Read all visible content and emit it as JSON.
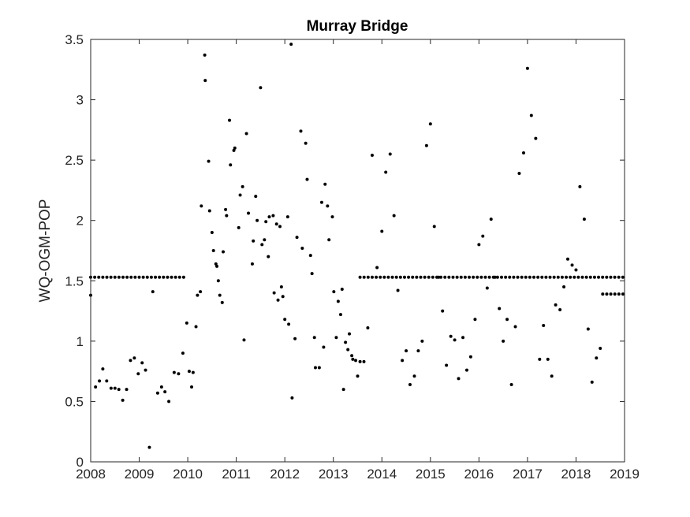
{
  "chart_data": {
    "type": "scatter",
    "title": "Murray Bridge",
    "xlabel": "",
    "ylabel": "WQ-OGM-POP",
    "xlim": [
      2008,
      2019
    ],
    "ylim": [
      0,
      3.5
    ],
    "xticks": [
      2008,
      2009,
      2010,
      2011,
      2012,
      2013,
      2014,
      2015,
      2016,
      2017,
      2018,
      2019
    ],
    "yticks": [
      0,
      0.5,
      1,
      1.5,
      2,
      2.5,
      3,
      3.5
    ],
    "ytick_labels": [
      "0",
      "0.5",
      "1",
      "1.5",
      "2",
      "2.5",
      "3",
      "3.5"
    ],
    "grid": false,
    "marker_color": "#000000",
    "axis_color": "#262626",
    "series": [
      {
        "points": [
          [
            2008.0,
            1.38
          ],
          [
            2008.1,
            0.62
          ],
          [
            2008.18,
            0.67
          ],
          [
            2008.25,
            0.77
          ],
          [
            2008.33,
            0.67
          ],
          [
            2008.42,
            0.61
          ],
          [
            2008.5,
            0.61
          ],
          [
            2008.58,
            0.6
          ],
          [
            2008.66,
            0.51
          ],
          [
            2008.74,
            0.6
          ],
          [
            2008.82,
            0.84
          ],
          [
            2008.9,
            0.86
          ],
          [
            2008.98,
            0.73
          ],
          [
            2009.06,
            0.82
          ],
          [
            2009.13,
            0.76
          ],
          [
            2009.21,
            0.12
          ],
          [
            2009.28,
            1.41
          ],
          [
            2009.38,
            0.57
          ],
          [
            2009.46,
            0.62
          ],
          [
            2009.53,
            0.58
          ],
          [
            2009.61,
            0.5
          ],
          [
            2009.72,
            0.74
          ],
          [
            2009.81,
            0.73
          ],
          [
            2009.9,
            0.9
          ],
          [
            2009.98,
            1.15
          ],
          [
            2010.03,
            0.75
          ],
          [
            2010.08,
            0.62
          ],
          [
            2010.11,
            0.74
          ],
          [
            2010.17,
            1.12
          ],
          [
            2010.2,
            1.38
          ],
          [
            2010.26,
            1.41
          ],
          [
            2010.28,
            2.12
          ],
          [
            2010.35,
            3.37
          ],
          [
            2010.36,
            3.16
          ],
          [
            2010.43,
            2.49
          ],
          [
            2010.45,
            2.08
          ],
          [
            2010.5,
            1.9
          ],
          [
            2010.53,
            1.75
          ],
          [
            2010.58,
            1.64
          ],
          [
            2010.6,
            1.62
          ],
          [
            2010.63,
            1.5
          ],
          [
            2010.66,
            1.38
          ],
          [
            2010.71,
            1.32
          ],
          [
            2010.73,
            1.74
          ],
          [
            2010.78,
            2.09
          ],
          [
            2010.8,
            2.04
          ],
          [
            2010.86,
            2.83
          ],
          [
            2010.88,
            2.46
          ],
          [
            2010.95,
            2.58
          ],
          [
            2010.97,
            2.6
          ],
          [
            2011.05,
            1.94
          ],
          [
            2011.08,
            2.21
          ],
          [
            2011.13,
            2.28
          ],
          [
            2011.16,
            1.01
          ],
          [
            2011.21,
            2.72
          ],
          [
            2011.25,
            2.06
          ],
          [
            2011.33,
            1.64
          ],
          [
            2011.35,
            1.83
          ],
          [
            2011.4,
            2.2
          ],
          [
            2011.43,
            2.0
          ],
          [
            2011.5,
            3.1
          ],
          [
            2011.53,
            1.8
          ],
          [
            2011.58,
            1.84
          ],
          [
            2011.61,
            1.99
          ],
          [
            2011.66,
            1.7
          ],
          [
            2011.68,
            2.03
          ],
          [
            2011.76,
            2.04
          ],
          [
            2011.78,
            1.4
          ],
          [
            2011.83,
            1.97
          ],
          [
            2011.86,
            1.34
          ],
          [
            2011.9,
            1.95
          ],
          [
            2011.93,
            1.45
          ],
          [
            2011.96,
            1.37
          ],
          [
            2012.0,
            1.18
          ],
          [
            2012.06,
            2.03
          ],
          [
            2012.08,
            1.14
          ],
          [
            2012.13,
            3.46
          ],
          [
            2012.15,
            0.53
          ],
          [
            2012.21,
            1.02
          ],
          [
            2012.25,
            1.86
          ],
          [
            2012.33,
            2.74
          ],
          [
            2012.36,
            1.77
          ],
          [
            2012.43,
            2.64
          ],
          [
            2012.46,
            2.34
          ],
          [
            2012.53,
            1.71
          ],
          [
            2012.56,
            1.56
          ],
          [
            2012.61,
            1.03
          ],
          [
            2012.63,
            0.78
          ],
          [
            2012.71,
            0.78
          ],
          [
            2012.76,
            2.15
          ],
          [
            2012.8,
            0.95
          ],
          [
            2012.83,
            2.3
          ],
          [
            2012.88,
            2.12
          ],
          [
            2012.91,
            1.84
          ],
          [
            2012.98,
            2.03
          ],
          [
            2013.01,
            1.41
          ],
          [
            2013.06,
            1.03
          ],
          [
            2013.1,
            1.33
          ],
          [
            2013.15,
            1.22
          ],
          [
            2013.18,
            1.43
          ],
          [
            2013.21,
            0.6
          ],
          [
            2013.25,
            0.99
          ],
          [
            2013.3,
            0.93
          ],
          [
            2013.33,
            1.06
          ],
          [
            2013.38,
            0.88
          ],
          [
            2013.4,
            0.85
          ],
          [
            2013.46,
            0.84
          ],
          [
            2013.5,
            0.71
          ],
          [
            2013.55,
            0.83
          ],
          [
            2013.63,
            0.83
          ],
          [
            2013.71,
            1.11
          ],
          [
            2013.8,
            2.54
          ],
          [
            2013.9,
            1.61
          ],
          [
            2014.0,
            1.91
          ],
          [
            2014.08,
            2.4
          ],
          [
            2014.17,
            2.55
          ],
          [
            2014.25,
            2.04
          ],
          [
            2014.33,
            1.42
          ],
          [
            2014.42,
            0.84
          ],
          [
            2014.5,
            0.92
          ],
          [
            2014.58,
            0.64
          ],
          [
            2014.67,
            0.71
          ],
          [
            2014.75,
            0.92
          ],
          [
            2014.83,
            1.0
          ],
          [
            2014.92,
            2.62
          ],
          [
            2015.0,
            2.8
          ],
          [
            2015.08,
            1.95
          ],
          [
            2015.17,
            1.53
          ],
          [
            2015.25,
            1.25
          ],
          [
            2015.33,
            0.8
          ],
          [
            2015.42,
            1.04
          ],
          [
            2015.5,
            1.01
          ],
          [
            2015.58,
            0.69
          ],
          [
            2015.67,
            1.03
          ],
          [
            2015.75,
            0.76
          ],
          [
            2015.83,
            0.87
          ],
          [
            2015.92,
            1.18
          ],
          [
            2016.0,
            1.8
          ],
          [
            2016.08,
            1.87
          ],
          [
            2016.17,
            1.44
          ],
          [
            2016.25,
            2.01
          ],
          [
            2016.33,
            1.53
          ],
          [
            2016.42,
            1.27
          ],
          [
            2016.5,
            1.0
          ],
          [
            2016.58,
            1.18
          ],
          [
            2016.67,
            0.64
          ],
          [
            2016.75,
            1.12
          ],
          [
            2016.83,
            2.39
          ],
          [
            2016.92,
            2.56
          ],
          [
            2017.0,
            3.26
          ],
          [
            2017.08,
            2.87
          ],
          [
            2017.17,
            2.68
          ],
          [
            2017.25,
            0.85
          ],
          [
            2017.33,
            1.13
          ],
          [
            2017.42,
            0.85
          ],
          [
            2017.5,
            0.71
          ],
          [
            2017.58,
            1.3
          ],
          [
            2017.67,
            1.26
          ],
          [
            2017.75,
            1.45
          ],
          [
            2017.83,
            1.68
          ],
          [
            2017.92,
            1.63
          ],
          [
            2018.0,
            1.59
          ],
          [
            2018.08,
            2.28
          ],
          [
            2018.17,
            2.01
          ],
          [
            2018.25,
            1.1
          ],
          [
            2018.33,
            0.66
          ],
          [
            2018.42,
            0.86
          ],
          [
            2018.5,
            0.94
          ]
        ],
        "line_points": {
          "value": 1.53,
          "ranges": [
            {
              "from": 2008.0,
              "to": 2009.95,
              "step": 0.0833
            },
            {
              "from": 2013.55,
              "to": 2019.0,
              "step": 0.0833
            }
          ]
        },
        "low_line_points": {
          "value": 1.39,
          "ranges": [
            {
              "from": 2018.55,
              "to": 2019.0,
              "step": 0.0833
            }
          ]
        }
      }
    ]
  }
}
